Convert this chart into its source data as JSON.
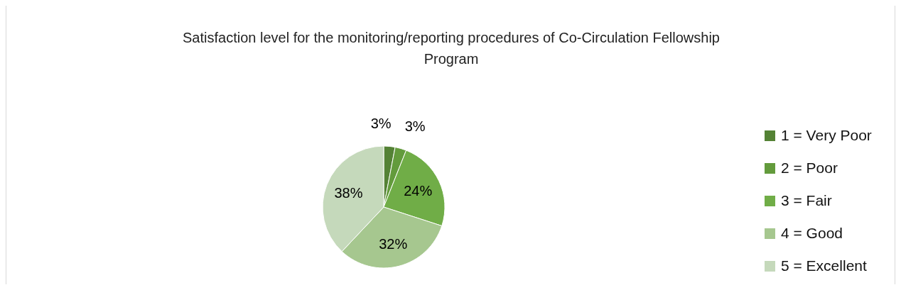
{
  "chart_data": {
    "type": "pie",
    "title": "Satisfaction level for the monitoring/reporting procedures of Co-Circulation Fellowship Program",
    "categories": [
      "1 = Very Poor",
      "2 = Poor",
      "3 = Fair",
      "4 = Good",
      "5 = Excellent"
    ],
    "values": [
      3,
      3,
      24,
      32,
      38
    ],
    "value_labels": [
      "3%",
      "3%",
      "24%",
      "32%",
      "38%"
    ],
    "colors": [
      "#548235",
      "#639b3c",
      "#70ad47",
      "#a6c78f",
      "#c5d9bb"
    ],
    "legend": "right"
  }
}
